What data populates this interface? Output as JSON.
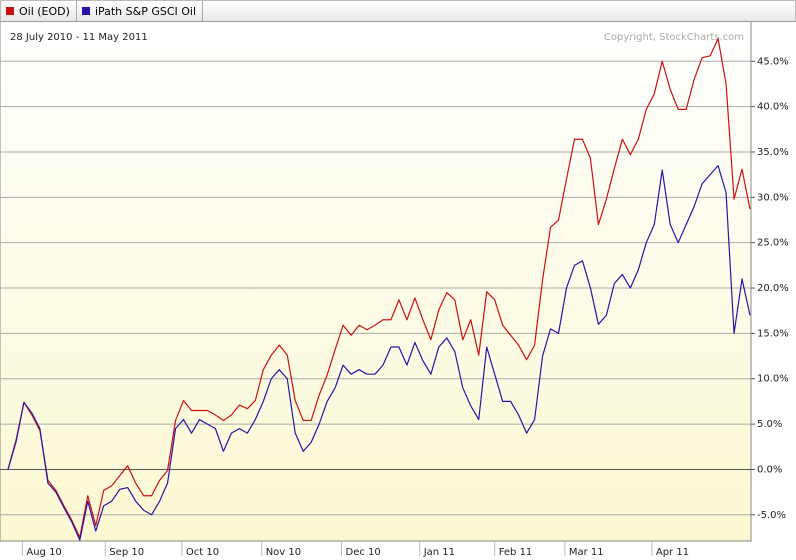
{
  "chart_data": {
    "type": "line",
    "subtitle": "28 July 2010 - 11 May 2011",
    "annotations": [
      "Copyright, StockCharts.com"
    ],
    "legend": "top-left",
    "grid": true,
    "xlim": [
      0,
      93
    ],
    "xticks": [
      {
        "value": 1.8,
        "label": "Aug 10"
      },
      {
        "value": 12.2,
        "label": "Sep 10"
      },
      {
        "value": 21.8,
        "label": "Oct 10"
      },
      {
        "value": 31.8,
        "label": "Nov 10"
      },
      {
        "value": 41.8,
        "label": "Dec 10"
      },
      {
        "value": 51.6,
        "label": "Jan 11"
      },
      {
        "value": 61,
        "label": "Feb 11"
      },
      {
        "value": 69.8,
        "label": "Mar 11"
      },
      {
        "value": 80.7,
        "label": "Apr 11"
      }
    ],
    "ylim": [
      -8,
      49
    ],
    "yticks": [
      {
        "value": -5,
        "label": "-5.0%"
      },
      {
        "value": 0,
        "label": "0.0%"
      },
      {
        "value": 5,
        "label": "5.0%"
      },
      {
        "value": 10,
        "label": "10.0%"
      },
      {
        "value": 15,
        "label": "15.0%"
      },
      {
        "value": 20,
        "label": "20.0%"
      },
      {
        "value": 25,
        "label": "25.0%"
      },
      {
        "value": 30,
        "label": "30.0%"
      },
      {
        "value": 35,
        "label": "35.0%"
      },
      {
        "value": 40,
        "label": "40.0%"
      },
      {
        "value": 45,
        "label": "45.0%"
      }
    ],
    "series": [
      {
        "name": "Oil (EOD)",
        "color": "#cc1111",
        "values": [
          0,
          3.2,
          7.4,
          6,
          4.3,
          -1.2,
          -2.3,
          -4,
          -5.6,
          -7.5,
          -2.9,
          -6.2,
          -2.3,
          -1.8,
          -0.7,
          0.4,
          -1.5,
          -2.9,
          -2.9,
          -1.2,
          -0.1,
          5.4,
          7.6,
          6.5,
          6.5,
          6.5,
          6,
          5.4,
          6,
          7.1,
          6.7,
          7.6,
          11,
          12.6,
          13.7,
          12.6,
          7.6,
          5.4,
          5.4,
          8.2,
          10.4,
          13.2,
          15.9,
          14.8,
          15.9,
          15.4,
          15.9,
          16.5,
          16.5,
          18.7,
          16.5,
          18.9,
          16.5,
          14.3,
          17.6,
          19.5,
          18.7,
          14.3,
          16.5,
          12.6,
          19.6,
          18.7,
          15.9,
          14.8,
          13.7,
          12.1,
          13.7,
          20.9,
          26.7,
          27.5,
          32,
          36.4,
          36.4,
          34.3,
          27,
          29.8,
          33.2,
          36.4,
          34.7,
          36.4,
          39.7,
          41.4,
          45,
          41.9,
          39.7,
          39.7,
          43,
          45.4,
          45.6,
          47.5,
          42.5,
          29.8,
          33.1,
          28.7
        ]
      },
      {
        "name": "iPath S&P GSCI Oil",
        "color": "#2a14a8",
        "values": [
          0,
          3,
          7.4,
          6.2,
          4.5,
          -1.5,
          -2.5,
          -4.2,
          -5.8,
          -7.8,
          -3.5,
          -6.8,
          -4,
          -3.5,
          -2.2,
          -2,
          -3.5,
          -4.5,
          -5,
          -3.5,
          -1.5,
          4.5,
          5.5,
          4,
          5.5,
          5,
          4.5,
          2,
          4,
          4.5,
          4,
          5.5,
          7.5,
          10,
          11,
          10,
          4,
          2,
          3,
          5,
          7.5,
          9,
          11.5,
          10.5,
          11,
          10.5,
          10.5,
          11.5,
          13.5,
          13.5,
          11.5,
          14,
          12,
          10.5,
          13.5,
          14.5,
          13,
          9,
          7,
          5.5,
          13.5,
          10.5,
          7.5,
          7.5,
          6,
          4,
          5.5,
          12.5,
          15.5,
          15,
          20,
          22.5,
          23,
          20,
          16,
          17,
          20.5,
          21.5,
          20,
          22,
          25,
          27,
          33,
          27,
          25,
          27,
          29,
          31.5,
          32.5,
          33.5,
          30.5,
          15,
          21,
          17
        ]
      }
    ]
  }
}
